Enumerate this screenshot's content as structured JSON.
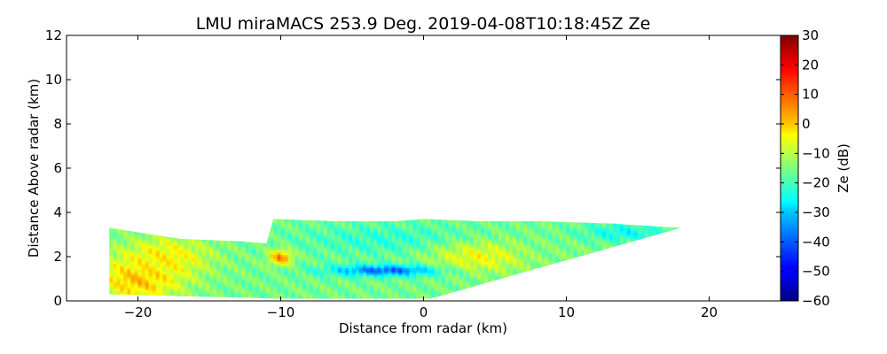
{
  "chart_data": {
    "type": "heatmap",
    "title": "LMU miraMACS 253.9 Deg. 2019-04-08T10:18:45Z  Ze",
    "xlabel": "Distance from radar (km)",
    "ylabel": "Distance Above radar  (km)",
    "xlim": [
      -25,
      25
    ],
    "ylim": [
      0,
      12
    ],
    "xticks": [
      -20,
      -10,
      0,
      10,
      20
    ],
    "xtick_labels": [
      "−20",
      "−10",
      "0",
      "10",
      "20"
    ],
    "yticks": [
      0,
      2,
      4,
      6,
      8,
      10,
      12
    ],
    "ytick_labels": [
      "0",
      "2",
      "4",
      "6",
      "8",
      "10",
      "12"
    ],
    "colormap": "jet",
    "colorbar": {
      "label": "Ze (dB)",
      "range": [
        -60,
        30
      ],
      "ticks": [
        30,
        20,
        10,
        0,
        -10,
        -20,
        -30,
        -40,
        -50,
        -60
      ],
      "tick_labels": [
        "30",
        "20",
        "10",
        "0",
        "−10",
        "−20",
        "−30",
        "−40",
        "−50",
        "−60"
      ]
    },
    "echo_region": {
      "boundary_km": [
        [
          -22,
          0.3
        ],
        [
          -22,
          3.3
        ],
        [
          -19,
          3.0
        ],
        [
          -17,
          2.8
        ],
        [
          -13,
          2.7
        ],
        [
          -11,
          2.6
        ],
        [
          -10.5,
          3.7
        ],
        [
          -6,
          3.6
        ],
        [
          -2,
          3.6
        ],
        [
          0,
          3.7
        ],
        [
          4,
          3.6
        ],
        [
          8,
          3.6
        ],
        [
          13,
          3.5
        ],
        [
          18,
          3.3
        ],
        [
          0.5,
          0.1
        ],
        [
          -10,
          0.1
        ],
        [
          -16,
          0.2
        ]
      ],
      "features": [
        {
          "x_km": -20,
          "y_km": 1.0,
          "ze_db": 2,
          "rx_km": 3.0,
          "ry_km": 1.0
        },
        {
          "x_km": -18,
          "y_km": 2.0,
          "ze_db": -3,
          "rx_km": 3.0,
          "ry_km": 0.9
        },
        {
          "x_km": -10,
          "y_km": 2.0,
          "ze_db": 8,
          "rx_km": 0.8,
          "ry_km": 0.35
        },
        {
          "x_km": -2.5,
          "y_km": 1.4,
          "ze_db": -40,
          "rx_km": 4.0,
          "ry_km": 0.25
        },
        {
          "x_km": -2.5,
          "y_km": 2.8,
          "ze_db": -22,
          "rx_km": 6.0,
          "ry_km": 0.7
        },
        {
          "x_km": 4,
          "y_km": 2.0,
          "ze_db": -5,
          "rx_km": 3.5,
          "ry_km": 0.7
        },
        {
          "x_km": 10,
          "y_km": 2.3,
          "ze_db": -15,
          "rx_km": 3.0,
          "ry_km": 0.6
        },
        {
          "x_km": 14,
          "y_km": 3.1,
          "ze_db": -25,
          "rx_km": 3.0,
          "ry_km": 0.4
        }
      ],
      "background_ze_db": -16
    }
  }
}
